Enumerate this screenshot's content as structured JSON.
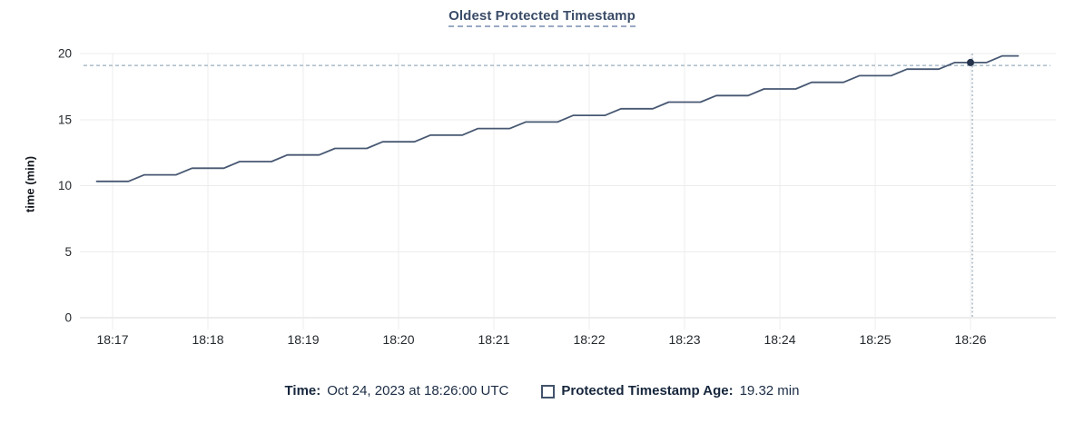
{
  "chart_data": {
    "type": "line",
    "title": "Oldest Protected Timestamp",
    "ylabel": "time (min)",
    "xlabel": "",
    "y_ticks": [
      0,
      5,
      10,
      15,
      20
    ],
    "ylim": [
      0,
      20
    ],
    "x_ticks": [
      "18:17",
      "18:18",
      "18:19",
      "18:20",
      "18:21",
      "18:22",
      "18:23",
      "18:24",
      "18:25",
      "18:26"
    ],
    "x_tick_interval_sec": 60,
    "x_start_sec": -10,
    "x_step_sec": 10,
    "grid": true,
    "legend_position": "bottom",
    "series": [
      {
        "name": "Protected Timestamp Age",
        "unit": "min",
        "values": [
          10.32,
          10.32,
          10.32,
          10.82,
          10.82,
          10.82,
          11.32,
          11.32,
          11.32,
          11.82,
          11.82,
          11.82,
          12.32,
          12.32,
          12.32,
          12.82,
          12.82,
          12.82,
          13.32,
          13.32,
          13.32,
          13.82,
          13.82,
          13.82,
          14.32,
          14.32,
          14.32,
          14.82,
          14.82,
          14.82,
          15.32,
          15.32,
          15.32,
          15.82,
          15.82,
          15.82,
          16.32,
          16.32,
          16.32,
          16.82,
          16.82,
          16.82,
          17.32,
          17.32,
          17.32,
          17.82,
          17.82,
          17.82,
          18.32,
          18.32,
          18.32,
          18.82,
          18.82,
          18.82,
          19.32,
          19.32,
          19.32,
          19.82,
          19.82
        ]
      }
    ],
    "crosshair": {
      "time_sec": 540,
      "time_label": "18:26:00",
      "value": 19.32
    },
    "colors": {
      "line": "#475872",
      "marker": "#26334c",
      "crosshair": "#99aebe",
      "grid": "#ececec",
      "axis": "#d8d8d8",
      "tick_text": "#24292e",
      "title": "#3a4c68",
      "title_underline": "#9aa9c2",
      "footer_text": "#1b2c44"
    }
  },
  "footer": {
    "time_label": "Time:",
    "time_value": "Oct 24, 2023 at 18:26:00 UTC",
    "series_label": "Protected Timestamp Age:",
    "series_value": "19.32 min"
  }
}
